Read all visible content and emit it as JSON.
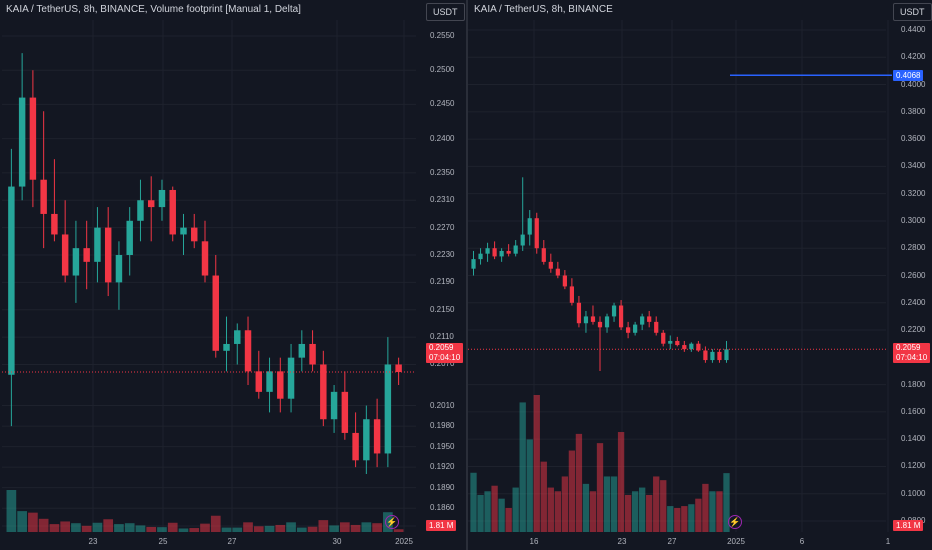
{
  "left": {
    "title": "KAIA / TetherUS, 8h, BINANCE, Volume footprint [Manual 1, Delta]",
    "currency": "USDT",
    "price_labels": [
      "0.2550",
      "0.2500",
      "0.2450",
      "0.2400",
      "0.2350",
      "0.2310",
      "0.2270",
      "0.2230",
      "0.2190",
      "0.2150",
      "0.2110",
      "0.2070",
      "0.2010",
      "0.1980",
      "0.1950",
      "0.1920",
      "0.1890",
      "0.1860",
      "0.1834"
    ],
    "current_price": "0.2059",
    "countdown": "07:04:10",
    "volume_label": "1.81 M",
    "x_labels": [
      "23",
      "25",
      "27",
      "30",
      "2025"
    ]
  },
  "right": {
    "title": "KAIA / TetherUS, 8h, BINANCE",
    "currency": "USDT",
    "price_labels": [
      "0.4400",
      "0.4200",
      "0.4000",
      "0.3800",
      "0.3600",
      "0.3400",
      "0.3200",
      "0.3000",
      "0.2800",
      "0.2600",
      "0.2400",
      "0.2200",
      "0.1800",
      "0.1600",
      "0.1400",
      "0.1200",
      "0.1000",
      "0.0800"
    ],
    "level_price": "0.4068",
    "current_price": "0.2059",
    "countdown": "07:04:10",
    "volume_label": "1.81 M",
    "x_labels": [
      "16",
      "23",
      "27",
      "2025",
      "6",
      "1"
    ]
  },
  "colors": {
    "up": "#26a69a",
    "down": "#f23645",
    "level": "#2962ff",
    "bg": "#131722",
    "grid": "#1e222d"
  },
  "chart_data": [
    {
      "type": "candlestick",
      "title": "KAIA / TetherUS, 8h, BINANCE, Volume footprint [Manual 1, Delta]",
      "y_unit": "USDT",
      "ylim": [
        0.1834,
        0.255
      ],
      "x_ticks": [
        "23",
        "25",
        "27",
        "30",
        "2025"
      ],
      "last_price": 0.2059,
      "candles": [
        [
          0.2055,
          0.2385,
          0.198,
          0.233
        ],
        [
          0.233,
          0.2525,
          0.231,
          0.246
        ],
        [
          0.246,
          0.25,
          0.23,
          0.234
        ],
        [
          0.234,
          0.244,
          0.224,
          0.229
        ],
        [
          0.229,
          0.237,
          0.225,
          0.226
        ],
        [
          0.226,
          0.231,
          0.219,
          0.22
        ],
        [
          0.22,
          0.228,
          0.216,
          0.224
        ],
        [
          0.224,
          0.228,
          0.218,
          0.222
        ],
        [
          0.222,
          0.23,
          0.219,
          0.227
        ],
        [
          0.227,
          0.23,
          0.217,
          0.219
        ],
        [
          0.219,
          0.225,
          0.215,
          0.223
        ],
        [
          0.223,
          0.23,
          0.22,
          0.228
        ],
        [
          0.228,
          0.234,
          0.225,
          0.231
        ],
        [
          0.231,
          0.2345,
          0.225,
          0.23
        ],
        [
          0.23,
          0.234,
          0.228,
          0.2325
        ],
        [
          0.2325,
          0.233,
          0.225,
          0.226
        ],
        [
          0.226,
          0.229,
          0.223,
          0.227
        ],
        [
          0.227,
          0.229,
          0.224,
          0.225
        ],
        [
          0.225,
          0.228,
          0.219,
          0.22
        ],
        [
          0.22,
          0.223,
          0.208,
          0.209
        ],
        [
          0.209,
          0.214,
          0.206,
          0.21
        ],
        [
          0.21,
          0.213,
          0.207,
          0.212
        ],
        [
          0.212,
          0.214,
          0.204,
          0.206
        ],
        [
          0.206,
          0.209,
          0.202,
          0.203
        ],
        [
          0.203,
          0.208,
          0.2,
          0.206
        ],
        [
          0.206,
          0.208,
          0.2,
          0.202
        ],
        [
          0.202,
          0.21,
          0.2,
          0.208
        ],
        [
          0.208,
          0.212,
          0.206,
          0.21
        ],
        [
          0.21,
          0.212,
          0.206,
          0.207
        ],
        [
          0.207,
          0.209,
          0.198,
          0.199
        ],
        [
          0.199,
          0.204,
          0.197,
          0.203
        ],
        [
          0.203,
          0.206,
          0.196,
          0.197
        ],
        [
          0.197,
          0.2,
          0.192,
          0.193
        ],
        [
          0.193,
          0.201,
          0.191,
          0.199
        ],
        [
          0.199,
          0.202,
          0.192,
          0.194
        ],
        [
          0.194,
          0.211,
          0.192,
          0.207
        ],
        [
          0.207,
          0.208,
          0.204,
          0.2059
        ]
      ]
    },
    {
      "type": "candlestick",
      "title": "KAIA / TetherUS, 8h, BINANCE",
      "y_unit": "USDT",
      "ylim": [
        0.08,
        0.44
      ],
      "x_ticks": [
        "16",
        "23",
        "27",
        "2025",
        "6",
        "1"
      ],
      "last_price": 0.2059,
      "horizontal_level": 0.4068,
      "candles": [
        [
          0.265,
          0.278,
          0.26,
          0.272
        ],
        [
          0.272,
          0.28,
          0.268,
          0.276
        ],
        [
          0.276,
          0.284,
          0.27,
          0.28
        ],
        [
          0.28,
          0.285,
          0.272,
          0.274
        ],
        [
          0.274,
          0.28,
          0.27,
          0.278
        ],
        [
          0.278,
          0.283,
          0.274,
          0.276
        ],
        [
          0.276,
          0.286,
          0.274,
          0.282
        ],
        [
          0.282,
          0.332,
          0.278,
          0.29
        ],
        [
          0.29,
          0.308,
          0.282,
          0.302
        ],
        [
          0.302,
          0.306,
          0.276,
          0.28
        ],
        [
          0.28,
          0.286,
          0.268,
          0.27
        ],
        [
          0.27,
          0.276,
          0.262,
          0.265
        ],
        [
          0.265,
          0.27,
          0.258,
          0.26
        ],
        [
          0.26,
          0.264,
          0.25,
          0.252
        ],
        [
          0.252,
          0.258,
          0.238,
          0.24
        ],
        [
          0.24,
          0.245,
          0.222,
          0.225
        ],
        [
          0.225,
          0.234,
          0.218,
          0.23
        ],
        [
          0.23,
          0.238,
          0.224,
          0.226
        ],
        [
          0.226,
          0.23,
          0.19,
          0.222
        ],
        [
          0.222,
          0.232,
          0.218,
          0.23
        ],
        [
          0.23,
          0.24,
          0.226,
          0.238
        ],
        [
          0.238,
          0.242,
          0.22,
          0.222
        ],
        [
          0.222,
          0.226,
          0.214,
          0.218
        ],
        [
          0.218,
          0.226,
          0.216,
          0.224
        ],
        [
          0.224,
          0.232,
          0.22,
          0.23
        ],
        [
          0.23,
          0.234,
          0.222,
          0.226
        ],
        [
          0.226,
          0.23,
          0.216,
          0.218
        ],
        [
          0.218,
          0.22,
          0.208,
          0.21
        ],
        [
          0.21,
          0.216,
          0.206,
          0.212
        ],
        [
          0.212,
          0.215,
          0.208,
          0.209
        ],
        [
          0.209,
          0.212,
          0.204,
          0.206
        ],
        [
          0.206,
          0.211,
          0.204,
          0.21
        ],
        [
          0.21,
          0.212,
          0.204,
          0.205
        ],
        [
          0.205,
          0.208,
          0.196,
          0.198
        ],
        [
          0.198,
          0.206,
          0.196,
          0.204
        ],
        [
          0.204,
          0.206,
          0.196,
          0.198
        ],
        [
          0.198,
          0.212,
          0.196,
          0.2059
        ]
      ]
    }
  ]
}
